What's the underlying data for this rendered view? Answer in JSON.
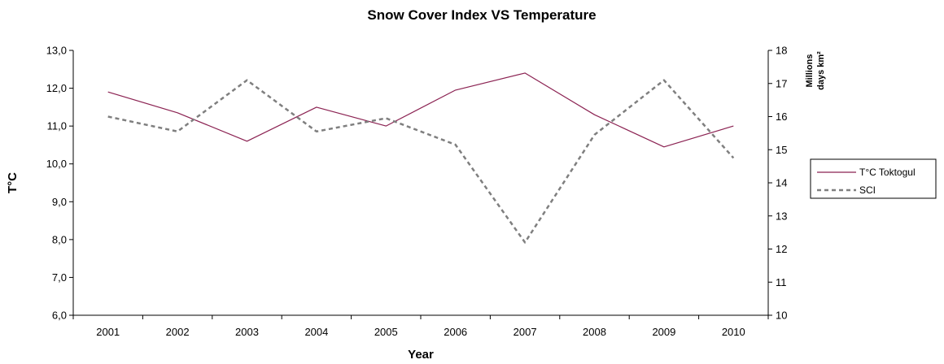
{
  "chart_data": {
    "type": "line",
    "title": "Snow Cover Index VS Temperature",
    "xlabel": "Year",
    "ylabel": "T°C",
    "y2label_line1": "Millions",
    "y2label_line2": "days km²",
    "categories": [
      "2001",
      "2002",
      "2003",
      "2004",
      "2005",
      "2006",
      "2007",
      "2008",
      "2009",
      "2010"
    ],
    "ylim": [
      6,
      13
    ],
    "yticks": [
      "6,0",
      "7,0",
      "8,0",
      "9,0",
      "10,0",
      "11,0",
      "12,0",
      "13,0"
    ],
    "y2lim": [
      10,
      18
    ],
    "y2ticks": [
      "10",
      "11",
      "12",
      "13",
      "14",
      "15",
      "16",
      "17",
      "18"
    ],
    "grid": false,
    "legend_position": "right",
    "series": [
      {
        "name": "T°C Toktogul",
        "axis": "left",
        "style": "solid",
        "color": "#8B2252",
        "values": [
          11.9,
          11.35,
          10.6,
          11.5,
          11.0,
          11.95,
          12.4,
          11.3,
          10.45,
          11.0
        ]
      },
      {
        "name": "SCI",
        "axis": "right",
        "style": "dashed",
        "color": "#7f7f7f",
        "values": [
          16.0,
          15.55,
          17.1,
          15.55,
          15.95,
          15.15,
          12.2,
          15.45,
          17.1,
          14.75
        ]
      }
    ]
  }
}
